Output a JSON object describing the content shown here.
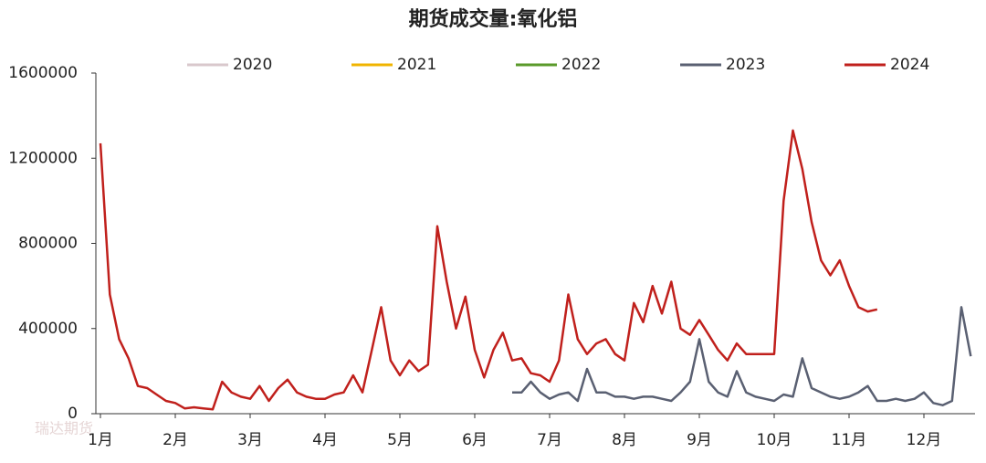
{
  "chart_data": {
    "type": "line",
    "title": "期货成交量:氧化铝",
    "watermark": "瑞达期货",
    "categories": [
      "1月",
      null,
      null,
      null,
      null,
      null,
      null,
      null,
      "2月",
      null,
      null,
      null,
      null,
      null,
      null,
      null,
      "3月",
      null,
      null,
      null,
      null,
      null,
      null,
      null,
      "4月",
      null,
      null,
      null,
      null,
      null,
      null,
      null,
      "5月",
      null,
      null,
      null,
      null,
      null,
      null,
      null,
      "6月",
      null,
      null,
      null,
      null,
      null,
      null,
      null,
      "7月",
      null,
      null,
      null,
      null,
      null,
      null,
      null,
      "8月",
      null,
      null,
      null,
      null,
      null,
      null,
      null,
      "9月",
      null,
      null,
      null,
      null,
      null,
      null,
      null,
      "10月",
      null,
      null,
      null,
      null,
      null,
      null,
      null,
      "11月",
      null,
      null,
      null,
      null,
      null,
      null,
      null,
      "12月",
      null,
      null,
      null,
      null,
      null
    ],
    "series": [
      {
        "name": "2020",
        "color": "#d9c8cc",
        "values": [
          null,
          null,
          null,
          null,
          null,
          null,
          null,
          null,
          null,
          null,
          null,
          null,
          null,
          null,
          null,
          null,
          null,
          null,
          null,
          null,
          null,
          null,
          null,
          null,
          null,
          null,
          null,
          null,
          null,
          null,
          null,
          null,
          null,
          null,
          null,
          null,
          null,
          null,
          null,
          null,
          null,
          null,
          null,
          null,
          null,
          null,
          null,
          null,
          null,
          null,
          null,
          null,
          null,
          null,
          null,
          null,
          null,
          null,
          null,
          null,
          null,
          null,
          null,
          null,
          null,
          null,
          null,
          null,
          null,
          null,
          null,
          null,
          null,
          null,
          null,
          null,
          null,
          null,
          null,
          null,
          null,
          null,
          null,
          null,
          null,
          null,
          null,
          null,
          null,
          null,
          null,
          null,
          null,
          null
        ]
      },
      {
        "name": "2021",
        "color": "#f0b400",
        "values": [
          null,
          null,
          null,
          null,
          null,
          null,
          null,
          null,
          null,
          null,
          null,
          null,
          null,
          null,
          null,
          null,
          null,
          null,
          null,
          null,
          null,
          null,
          null,
          null,
          null,
          null,
          null,
          null,
          null,
          null,
          null,
          null,
          null,
          null,
          null,
          null,
          null,
          null,
          null,
          null,
          null,
          null,
          null,
          null,
          null,
          null,
          null,
          null,
          null,
          null,
          null,
          null,
          null,
          null,
          null,
          null,
          null,
          null,
          null,
          null,
          null,
          null,
          null,
          null,
          null,
          null,
          null,
          null,
          null,
          null,
          null,
          null,
          null,
          null,
          null,
          null,
          null,
          null,
          null,
          null,
          null,
          null,
          null,
          null,
          null,
          null,
          null,
          null,
          null,
          null,
          null,
          null,
          null,
          null
        ]
      },
      {
        "name": "2022",
        "color": "#5a9a2a",
        "values": [
          null,
          null,
          null,
          null,
          null,
          null,
          null,
          null,
          null,
          null,
          null,
          null,
          null,
          null,
          null,
          null,
          null,
          null,
          null,
          null,
          null,
          null,
          null,
          null,
          null,
          null,
          null,
          null,
          null,
          null,
          null,
          null,
          null,
          null,
          null,
          null,
          null,
          null,
          null,
          null,
          null,
          null,
          null,
          null,
          null,
          null,
          null,
          null,
          null,
          null,
          null,
          null,
          null,
          null,
          null,
          null,
          null,
          null,
          null,
          null,
          null,
          null,
          null,
          null,
          null,
          null,
          null,
          null,
          null,
          null,
          null,
          null,
          null,
          null,
          null,
          null,
          null,
          null,
          null,
          null,
          null,
          null,
          null,
          null,
          null,
          null,
          null,
          null,
          null,
          null,
          null,
          null,
          null,
          null
        ]
      },
      {
        "name": "2023",
        "color": "#5a6072",
        "values": [
          null,
          null,
          null,
          null,
          null,
          null,
          null,
          null,
          null,
          null,
          null,
          null,
          null,
          null,
          null,
          null,
          null,
          null,
          null,
          null,
          null,
          null,
          null,
          null,
          null,
          null,
          null,
          null,
          null,
          null,
          null,
          null,
          null,
          null,
          null,
          null,
          null,
          null,
          null,
          null,
          null,
          null,
          null,
          null,
          100000,
          100000,
          150000,
          100000,
          70000,
          90000,
          100000,
          60000,
          210000,
          100000,
          100000,
          80000,
          80000,
          70000,
          80000,
          80000,
          70000,
          60000,
          100000,
          150000,
          350000,
          150000,
          100000,
          80000,
          200000,
          100000,
          80000,
          70000,
          60000,
          90000,
          80000,
          260000,
          120000,
          100000,
          80000,
          70000,
          80000,
          100000,
          130000,
          60000,
          60000,
          70000,
          60000,
          70000,
          100000,
          50000,
          40000,
          60000,
          500000,
          270000
        ]
      },
      {
        "name": "2024",
        "color": "#c0201c",
        "values": [
          1270000,
          560000,
          350000,
          260000,
          130000,
          120000,
          90000,
          60000,
          50000,
          25000,
          30000,
          25000,
          20000,
          150000,
          100000,
          80000,
          70000,
          130000,
          60000,
          120000,
          160000,
          100000,
          80000,
          70000,
          70000,
          90000,
          100000,
          180000,
          100000,
          300000,
          500000,
          250000,
          180000,
          250000,
          200000,
          230000,
          880000,
          620000,
          400000,
          550000,
          300000,
          170000,
          300000,
          380000,
          250000,
          260000,
          190000,
          180000,
          150000,
          250000,
          560000,
          350000,
          280000,
          330000,
          350000,
          280000,
          250000,
          520000,
          430000,
          600000,
          470000,
          620000,
          400000,
          370000,
          440000,
          370000,
          300000,
          250000,
          330000,
          280000,
          280000,
          280000,
          280000,
          1000000,
          1330000,
          1150000,
          900000,
          720000,
          650000,
          720000,
          600000,
          500000,
          480000,
          490000,
          null,
          null,
          null,
          null,
          null,
          null,
          null,
          null,
          null,
          null
        ]
      }
    ],
    "ylim": [
      0,
      1600000
    ],
    "yticks": [
      0,
      400000,
      800000,
      1200000,
      1600000
    ],
    "grid": false
  }
}
